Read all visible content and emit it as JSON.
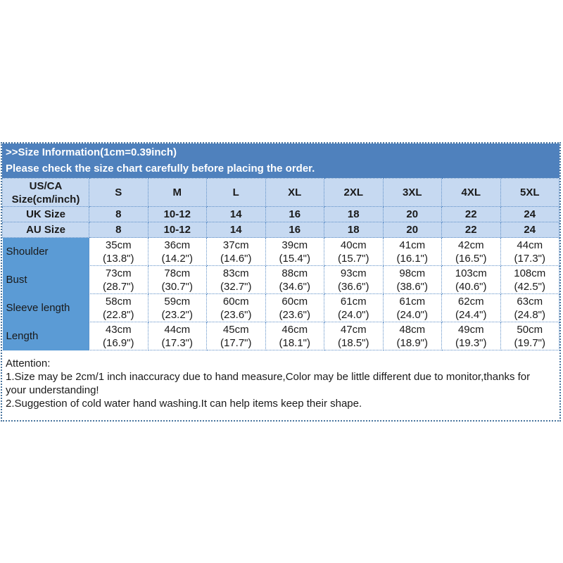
{
  "title_bar": {
    "line1": ">>Size Information(1cm=0.39inch)",
    "line2": "Please check the size chart carefully before placing the order."
  },
  "size_table": {
    "corner_header": "US/CA\nSize(cm/inch)",
    "size_columns": [
      "S",
      "M",
      "L",
      "XL",
      "2XL",
      "3XL",
      "4XL",
      "5XL"
    ],
    "region_rows": [
      {
        "label": "UK Size",
        "values": [
          "8",
          "10-12",
          "14",
          "16",
          "18",
          "20",
          "22",
          "24"
        ]
      },
      {
        "label": "AU Size",
        "values": [
          "8",
          "10-12",
          "14",
          "16",
          "18",
          "20",
          "22",
          "24"
        ]
      }
    ],
    "measurement_rows": [
      {
        "label": "Shoulder",
        "values": [
          "35cm\n(13.8\")",
          "36cm\n(14.2\")",
          "37cm\n(14.6\")",
          "39cm\n(15.4\")",
          "40cm\n(15.7\")",
          "41cm\n(16.1\")",
          "42cm\n(16.5\")",
          "44cm\n(17.3\")"
        ]
      },
      {
        "label": "Bust",
        "values": [
          "73cm\n(28.7\")",
          "78cm\n(30.7\")",
          "83cm\n(32.7\")",
          "88cm\n(34.6\")",
          "93cm\n(36.6\")",
          "98cm\n(38.6\")",
          "103cm\n(40.6\")",
          "108cm\n(42.5\")"
        ]
      },
      {
        "label": "Sleeve length",
        "values": [
          "58cm\n(22.8\")",
          "59cm\n(23.2\")",
          "60cm\n(23.6\")",
          "60cm\n(23.6\")",
          "61cm\n(24.0\")",
          "61cm\n(24.0\")",
          "62cm\n(24.4\")",
          "63cm\n(24.8\")"
        ]
      },
      {
        "label": "Length",
        "values": [
          "43cm\n(16.9\")",
          "44cm\n(17.3\")",
          "45cm\n(17.7\")",
          "46cm\n(18.1\")",
          "47cm\n(18.5\")",
          "48cm\n(18.9\")",
          "49cm\n(19.3\")",
          "50cm\n(19.7\")"
        ]
      }
    ]
  },
  "attention": {
    "title": "Attention:",
    "items": [
      "1.Size may be 2cm/1 inch inaccuracy due to hand measure,Color may be little different due to monitor,thanks for your understanding!",
      "2.Suggestion of cold water hand washing.It can help items keep their shape."
    ]
  },
  "colors": {
    "band_bg": "#4f81bd",
    "band_text": "#ffffff",
    "header_row_bg": "#c6d9f1",
    "label_column_bg": "#5b9bd5",
    "data_cell_bg": "#ffffff",
    "dotted_border": "#5e8fc7",
    "outer_border": "#4a759e",
    "text": "#1a1a1a"
  }
}
